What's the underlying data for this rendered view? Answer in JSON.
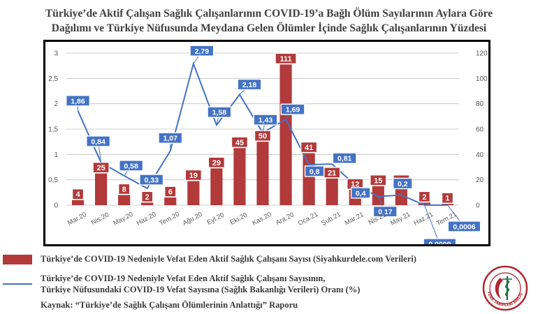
{
  "title_line1": "Türkiye’de Aktif Çalışan Sağlık Çalışanlarının COVID-19’a Bağlı Ölüm Sayılarının Aylara Göre",
  "title_line2": "Dağılımı ve Türkiye Nüfusunda Meydana Gelen Ölümler İçinde Sağlık Çalışanlarının Yüzdesi",
  "legend": {
    "bar_label": "Türkiye’de COVID-19 Nedeniyle Vefat Eden Aktif Sağlık Çalışanı Sayısı (Siyahkurdele.com Verileri)",
    "line_label_1": "Türkiye’de COVID-19 Nedeniyle Vefat Eden Aktif Sağlık Çalışanı Sayısının,",
    "line_label_2": "Türkiye Nüfusundaki COVID-19 Vefat Sayısına (Sağlık Bakanlığı Verileri) Oranı (%)",
    "source": "Kaynak: “Türkiye’de Sağlık Çalışanı Ölümlerinin Anlattığı” Raporu"
  },
  "logo_text": "TÜRK TABİPLERİ BİRLİĞİ",
  "colors": {
    "bar": "#b23a3a",
    "line": "#4472c4",
    "grid": "#bfbfbf",
    "axis_text": "#595959"
  },
  "chart_data": {
    "type": "bar",
    "categories": [
      "Mar.20",
      "Nis.20",
      "May.20",
      "Haz.20",
      "Tem.20",
      "Ağu.20",
      "Eyl.20",
      "Eki.20",
      "Kas.20",
      "Ara.20",
      "Oca.21",
      "Şub.21",
      "Mar.21",
      "Nis.21",
      "May.21",
      "Haz.21",
      "Tem.21"
    ],
    "series": [
      {
        "axis": "right",
        "type": "bar",
        "values": [
          4,
          25,
          8,
          2,
          6,
          19,
          29,
          45,
          50,
          111,
          41,
          21,
          12,
          15,
          15,
          2,
          1
        ]
      },
      {
        "axis": "left",
        "type": "line",
        "values": [
          1.86,
          0.84,
          0.58,
          0.33,
          1.07,
          2.79,
          1.58,
          2.18,
          1.43,
          1.69,
          0.8,
          0.81,
          0.4,
          0.17,
          0.2,
          0.0009,
          0.0006
        ],
        "point_labels": [
          "1,86",
          "0,84",
          "0,58",
          "0,33",
          "1,07",
          "2,79",
          "1,58",
          "2,18",
          "1,43",
          "1,69",
          "0,8",
          "0,81",
          "0,4",
          "0,17",
          "0,2",
          "0,0009",
          "0,0006"
        ]
      }
    ],
    "ylim_left": [
      0,
      3
    ],
    "yticks_left": [
      "0",
      "0,5",
      "1",
      "1,5",
      "2",
      "2,5",
      "3"
    ],
    "ylim_right": [
      0,
      120
    ],
    "yticks_right": [
      "0",
      "20",
      "40",
      "60",
      "80",
      "100",
      "120"
    ],
    "grid": true,
    "legend_position": "bottom"
  }
}
